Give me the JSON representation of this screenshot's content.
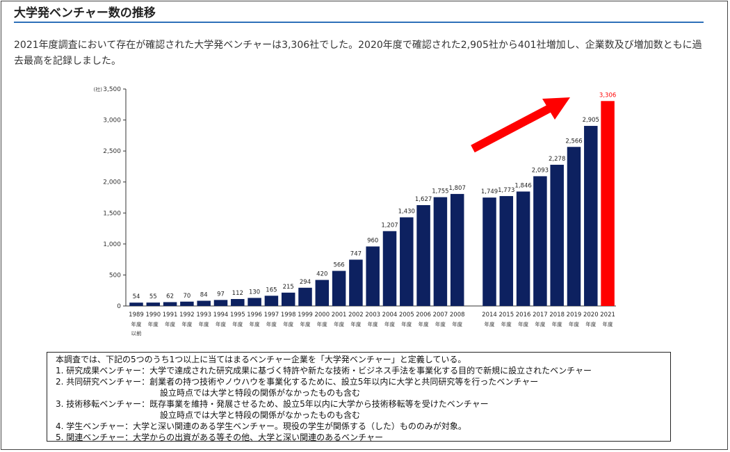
{
  "heading": "大学発ベンチャー数の推移",
  "intro": "2021年度調査において存在が確認された大学発ベンチャーは3,306社でした。2020年度で確認された2,905社から401社増加し、企業数及び増加数ともに過去最高を記録しました。",
  "chart_data": {
    "type": "bar",
    "y_unit_label": "(社)",
    "ylim": [
      0,
      3500
    ],
    "yticks": [
      0,
      500,
      1000,
      1500,
      2000,
      2500,
      3000,
      3500
    ],
    "ytick_labels": [
      "0",
      "500",
      "1,000",
      "1,500",
      "2,000",
      "2,500",
      "3,000",
      "3,500"
    ],
    "categories": [
      "1989",
      "1990",
      "1991",
      "1992",
      "1993",
      "1994",
      "1995",
      "1996",
      "1997",
      "1998",
      "1999",
      "2000",
      "2001",
      "2002",
      "2003",
      "2004",
      "2005",
      "2006",
      "2007",
      "2008",
      "2014",
      "2015",
      "2016",
      "2017",
      "2018",
      "2019",
      "2020",
      "2021"
    ],
    "category_sublabel": "年度",
    "first_category_extra": "以前",
    "values": [
      54,
      55,
      62,
      70,
      84,
      97,
      112,
      130,
      165,
      215,
      294,
      420,
      566,
      747,
      960,
      1207,
      1430,
      1627,
      1755,
      1807,
      1749,
      1773,
      1846,
      2093,
      2278,
      2566,
      2905,
      3306
    ],
    "value_labels": [
      "54",
      "55",
      "62",
      "70",
      "84",
      "97",
      "112",
      "130",
      "165",
      "215",
      "294",
      "420",
      "566",
      "747",
      "960",
      "1,207",
      "1,430",
      "1,627",
      "1,755",
      "1,807",
      "1,749",
      "1,773",
      "1,846",
      "2,093",
      "2,278",
      "2,566",
      "2,905",
      "3,306"
    ],
    "bar_color": "#0d2160",
    "highlight_color": "#ff0000",
    "highlight_category": "2021",
    "trend_arrow": true
  },
  "notes": {
    "lines": [
      {
        "text": "本調査では、下記の5つのうち1つ以上に当てはまるベンチャー企業を「大学発ベンチャー」と定義している。",
        "indent": false
      },
      {
        "text": "1. 研究成果ベンチャー：大学で達成された研究成果に基づく特許や新たな技術・ビジネス手法を事業化する目的で新規に設立されたベンチャー",
        "indent": false
      },
      {
        "text": "2. 共同研究ベンチャー：創業者の持つ技術やノウハウを事業化するために、設立5年以内に大学と共同研究等を行ったベンチャー",
        "indent": false
      },
      {
        "text": "設立時点では大学と特段の関係がなかったものも含む",
        "indent": true
      },
      {
        "text": "3. 技術移転ベンチャー：既存事業を維持・発展させるため、設立5年以内に大学から技術移転等を受けたベンチャー",
        "indent": false
      },
      {
        "text": "設立時点では大学と特段の関係がなかったものも含む",
        "indent": true
      },
      {
        "text": "4. 学生ベンチャー：大学と深い関連のある学生ベンチャー。現役の学生が関係する（した）もののみが対象。",
        "indent": false
      },
      {
        "text": "5. 関連ベンチャー：大学からの出資がある等その他、大学と深い関連のあるベンチャー",
        "indent": false
      }
    ]
  }
}
